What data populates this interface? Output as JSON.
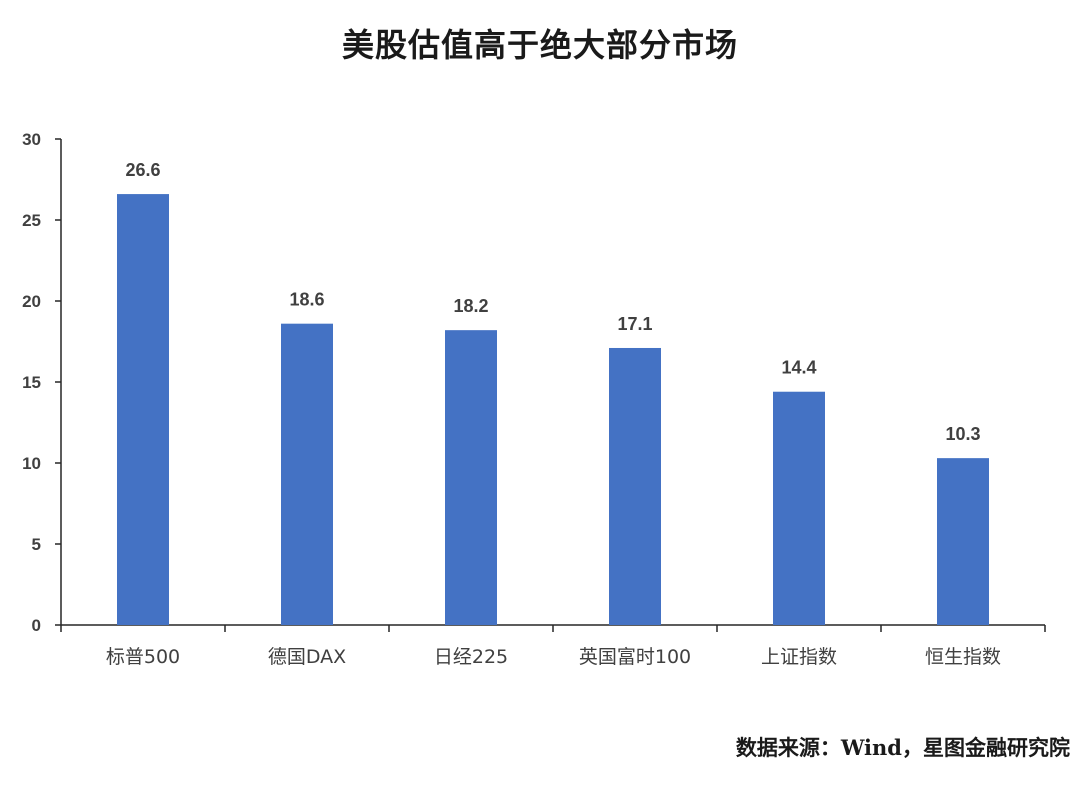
{
  "title": "美股估值高于绝大部分市场",
  "source": "数据来源：Wind，星图金融研究院",
  "colors": {
    "bar": "#4472C4",
    "axis": "#262626",
    "text": "#404040"
  },
  "chart_data": {
    "type": "bar",
    "title": "美股估值高于绝大部分市场",
    "categories": [
      "标普500",
      "德国DAX",
      "日经225",
      "英国富时100",
      "上证指数",
      "恒生指数"
    ],
    "values": [
      26.6,
      18.6,
      18.2,
      17.1,
      14.4,
      10.3
    ],
    "data_labels": [
      "26.6",
      "18.6",
      "18.2",
      "17.1",
      "14.4",
      "10.3"
    ],
    "xlabel": "",
    "ylabel": "",
    "ylim": [
      0,
      30
    ],
    "yticks": [
      0,
      5,
      10,
      15,
      20,
      25,
      30
    ],
    "grid": false,
    "legend": "none"
  }
}
